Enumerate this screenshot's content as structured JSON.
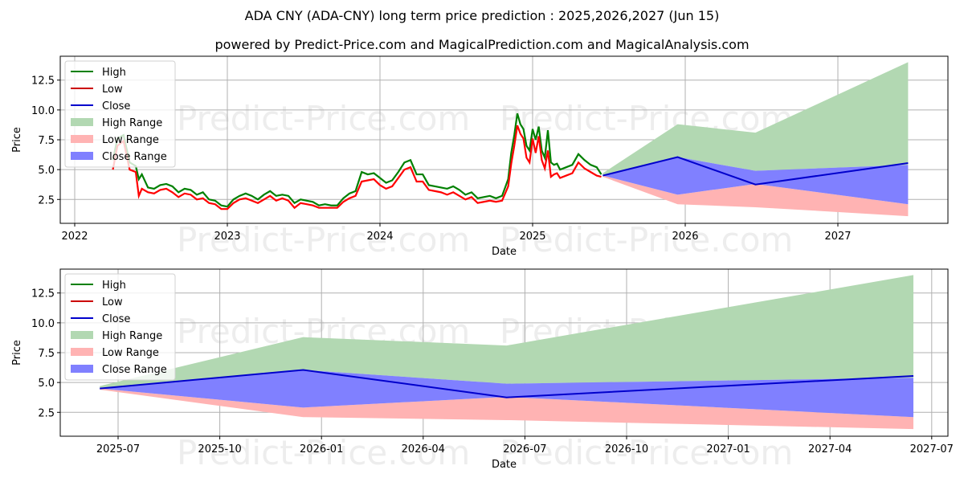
{
  "header": {
    "title": "ADA CNY (ADA-CNY) long term price prediction : 2025,2026,2027 (Jun 15)",
    "subtitle": "powered by Predict-Price.com and MagicalPrediction.com and MagicalAnalysis.com"
  },
  "watermark": "Predict-Price.com",
  "colors": {
    "high": "#008000",
    "low": "#ff0000",
    "close": "#0000cc",
    "high_range": "#b2d8b2",
    "low_range": "#ffb3b3",
    "close_range": "#8080ff",
    "grid": "#b0b0b0"
  },
  "legend": [
    {
      "label": "High",
      "kind": "line",
      "color": "#008000"
    },
    {
      "label": "Low",
      "kind": "line",
      "color": "#cc0000"
    },
    {
      "label": "Close",
      "kind": "line",
      "color": "#0000cc"
    },
    {
      "label": "High Range",
      "kind": "patch",
      "color": "#b2d8b2"
    },
    {
      "label": "Low Range",
      "kind": "patch",
      "color": "#ffb3b3"
    },
    {
      "label": "Close Range",
      "kind": "patch",
      "color": "#8080ff"
    }
  ],
  "chart_data": [
    {
      "type": "line",
      "panel": "top",
      "title": "ADA CNY (ADA-CNY) long term price prediction : 2025,2026,2027 (Jun 15)",
      "xlabel": "Date",
      "ylabel": "Price",
      "ylim": [
        0.5,
        14.5
      ],
      "yticks": [
        2.5,
        5.0,
        7.5,
        10.0,
        12.5
      ],
      "ytick_labels": [
        "2.5",
        "5.0",
        "7.5",
        "10.0",
        "12.5"
      ],
      "xticks": [
        "2022",
        "2023",
        "2024",
        "2025",
        "2026",
        "2027"
      ],
      "grid": true,
      "legend_position": "upper left",
      "history": {
        "x": [
          2022.25,
          2022.28,
          2022.32,
          2022.36,
          2022.4,
          2022.42,
          2022.44,
          2022.48,
          2022.52,
          2022.56,
          2022.6,
          2022.64,
          2022.68,
          2022.72,
          2022.76,
          2022.8,
          2022.84,
          2022.88,
          2022.92,
          2022.96,
          2023.0,
          2023.04,
          2023.08,
          2023.12,
          2023.16,
          2023.2,
          2023.24,
          2023.28,
          2023.32,
          2023.36,
          2023.4,
          2023.44,
          2023.48,
          2023.52,
          2023.56,
          2023.6,
          2023.64,
          2023.68,
          2023.72,
          2023.76,
          2023.8,
          2023.84,
          2023.88,
          2023.92,
          2023.96,
          2024.0,
          2024.04,
          2024.08,
          2024.12,
          2024.16,
          2024.2,
          2024.24,
          2024.28,
          2024.32,
          2024.36,
          2024.4,
          2024.44,
          2024.48,
          2024.52,
          2024.56,
          2024.6,
          2024.64,
          2024.68,
          2024.72,
          2024.76,
          2024.8,
          2024.84,
          2024.86,
          2024.88,
          2024.9,
          2024.92,
          2024.94,
          2024.96,
          2024.98,
          2025.0,
          2025.02,
          2025.04,
          2025.06,
          2025.08,
          2025.1,
          2025.12,
          2025.14,
          2025.16,
          2025.18,
          2025.22,
          2025.26,
          2025.3,
          2025.34,
          2025.38,
          2025.42,
          2025.45
        ],
        "high": [
          5.8,
          7.6,
          7.9,
          5.6,
          5.3,
          4.2,
          4.6,
          3.5,
          3.4,
          3.7,
          3.8,
          3.6,
          3.1,
          3.4,
          3.3,
          2.9,
          3.1,
          2.5,
          2.4,
          2.0,
          1.9,
          2.5,
          2.8,
          3.0,
          2.8,
          2.5,
          2.9,
          3.2,
          2.8,
          2.9,
          2.8,
          2.2,
          2.5,
          2.4,
          2.3,
          2.0,
          2.1,
          2.0,
          2.0,
          2.6,
          3.0,
          3.2,
          4.8,
          4.6,
          4.7,
          4.3,
          3.9,
          4.1,
          4.8,
          5.6,
          5.8,
          4.6,
          4.6,
          3.7,
          3.6,
          3.5,
          3.4,
          3.6,
          3.3,
          2.9,
          3.1,
          2.6,
          2.7,
          2.8,
          2.6,
          2.8,
          4.2,
          6.4,
          7.9,
          9.7,
          8.8,
          8.4,
          7.0,
          6.6,
          8.4,
          7.5,
          8.6,
          6.6,
          6.0,
          8.3,
          5.6,
          5.4,
          5.5,
          5.0,
          5.2,
          5.4,
          6.3,
          5.8,
          5.4,
          5.2,
          4.6
        ],
        "low": [
          5.0,
          7.0,
          7.4,
          5.0,
          4.8,
          2.8,
          3.4,
          3.1,
          3.0,
          3.3,
          3.4,
          3.1,
          2.7,
          3.0,
          2.9,
          2.5,
          2.6,
          2.2,
          2.1,
          1.7,
          1.7,
          2.2,
          2.5,
          2.6,
          2.4,
          2.2,
          2.5,
          2.8,
          2.4,
          2.6,
          2.4,
          1.8,
          2.2,
          2.1,
          2.0,
          1.8,
          1.8,
          1.8,
          1.8,
          2.3,
          2.6,
          2.8,
          4.0,
          4.1,
          4.2,
          3.7,
          3.4,
          3.6,
          4.3,
          5.0,
          5.2,
          4.0,
          4.0,
          3.3,
          3.2,
          3.1,
          2.9,
          3.1,
          2.8,
          2.5,
          2.7,
          2.2,
          2.3,
          2.4,
          2.3,
          2.4,
          3.6,
          5.5,
          7.0,
          8.7,
          8.0,
          7.6,
          6.0,
          5.6,
          7.6,
          6.4,
          7.8,
          5.8,
          5.1,
          6.6,
          4.4,
          4.6,
          4.7,
          4.3,
          4.5,
          4.7,
          5.6,
          5.1,
          4.8,
          4.5,
          4.4
        ]
      },
      "forecast": {
        "x": [
          2025.46,
          2025.95,
          2026.46,
          2027.46
        ],
        "close": [
          4.5,
          6.05,
          3.75,
          5.55
        ],
        "high_range_top": [
          4.7,
          8.8,
          8.1,
          14.0
        ],
        "high_range_bottom": [
          4.5,
          6.05,
          4.9,
          5.4
        ],
        "close_range_top": [
          4.5,
          6.05,
          4.9,
          5.4
        ],
        "close_range_bottom": [
          4.5,
          2.9,
          3.8,
          2.1
        ],
        "low_range_top": [
          4.5,
          2.9,
          3.8,
          2.1
        ],
        "low_range_bottom": [
          4.4,
          2.1,
          1.85,
          1.1
        ]
      }
    },
    {
      "type": "area",
      "panel": "bottom",
      "xlabel": "Date",
      "ylabel": "Price",
      "ylim": [
        0.5,
        14.5
      ],
      "yticks": [
        2.5,
        5.0,
        7.5,
        10.0,
        12.5
      ],
      "ytick_labels": [
        "2.5",
        "5.0",
        "7.5",
        "10.0",
        "12.5"
      ],
      "xticks": [
        "2025-07",
        "2025-10",
        "2026-01",
        "2026-04",
        "2026-07",
        "2026-10",
        "2027-01",
        "2027-04",
        "2027-07"
      ],
      "grid": true,
      "legend_position": "upper left",
      "forecast": {
        "x": [
          "2025-06-15",
          "2025-12-15",
          "2026-06-15",
          "2027-06-15"
        ],
        "close": [
          4.5,
          6.05,
          3.75,
          5.55
        ],
        "high_range_top": [
          4.7,
          8.8,
          8.1,
          14.0
        ],
        "close_range_top": [
          4.5,
          6.05,
          4.9,
          5.4
        ],
        "close_range_bottom": [
          4.5,
          2.9,
          3.8,
          2.1
        ],
        "low_range_bottom": [
          4.4,
          2.1,
          1.85,
          1.1
        ]
      }
    }
  ]
}
